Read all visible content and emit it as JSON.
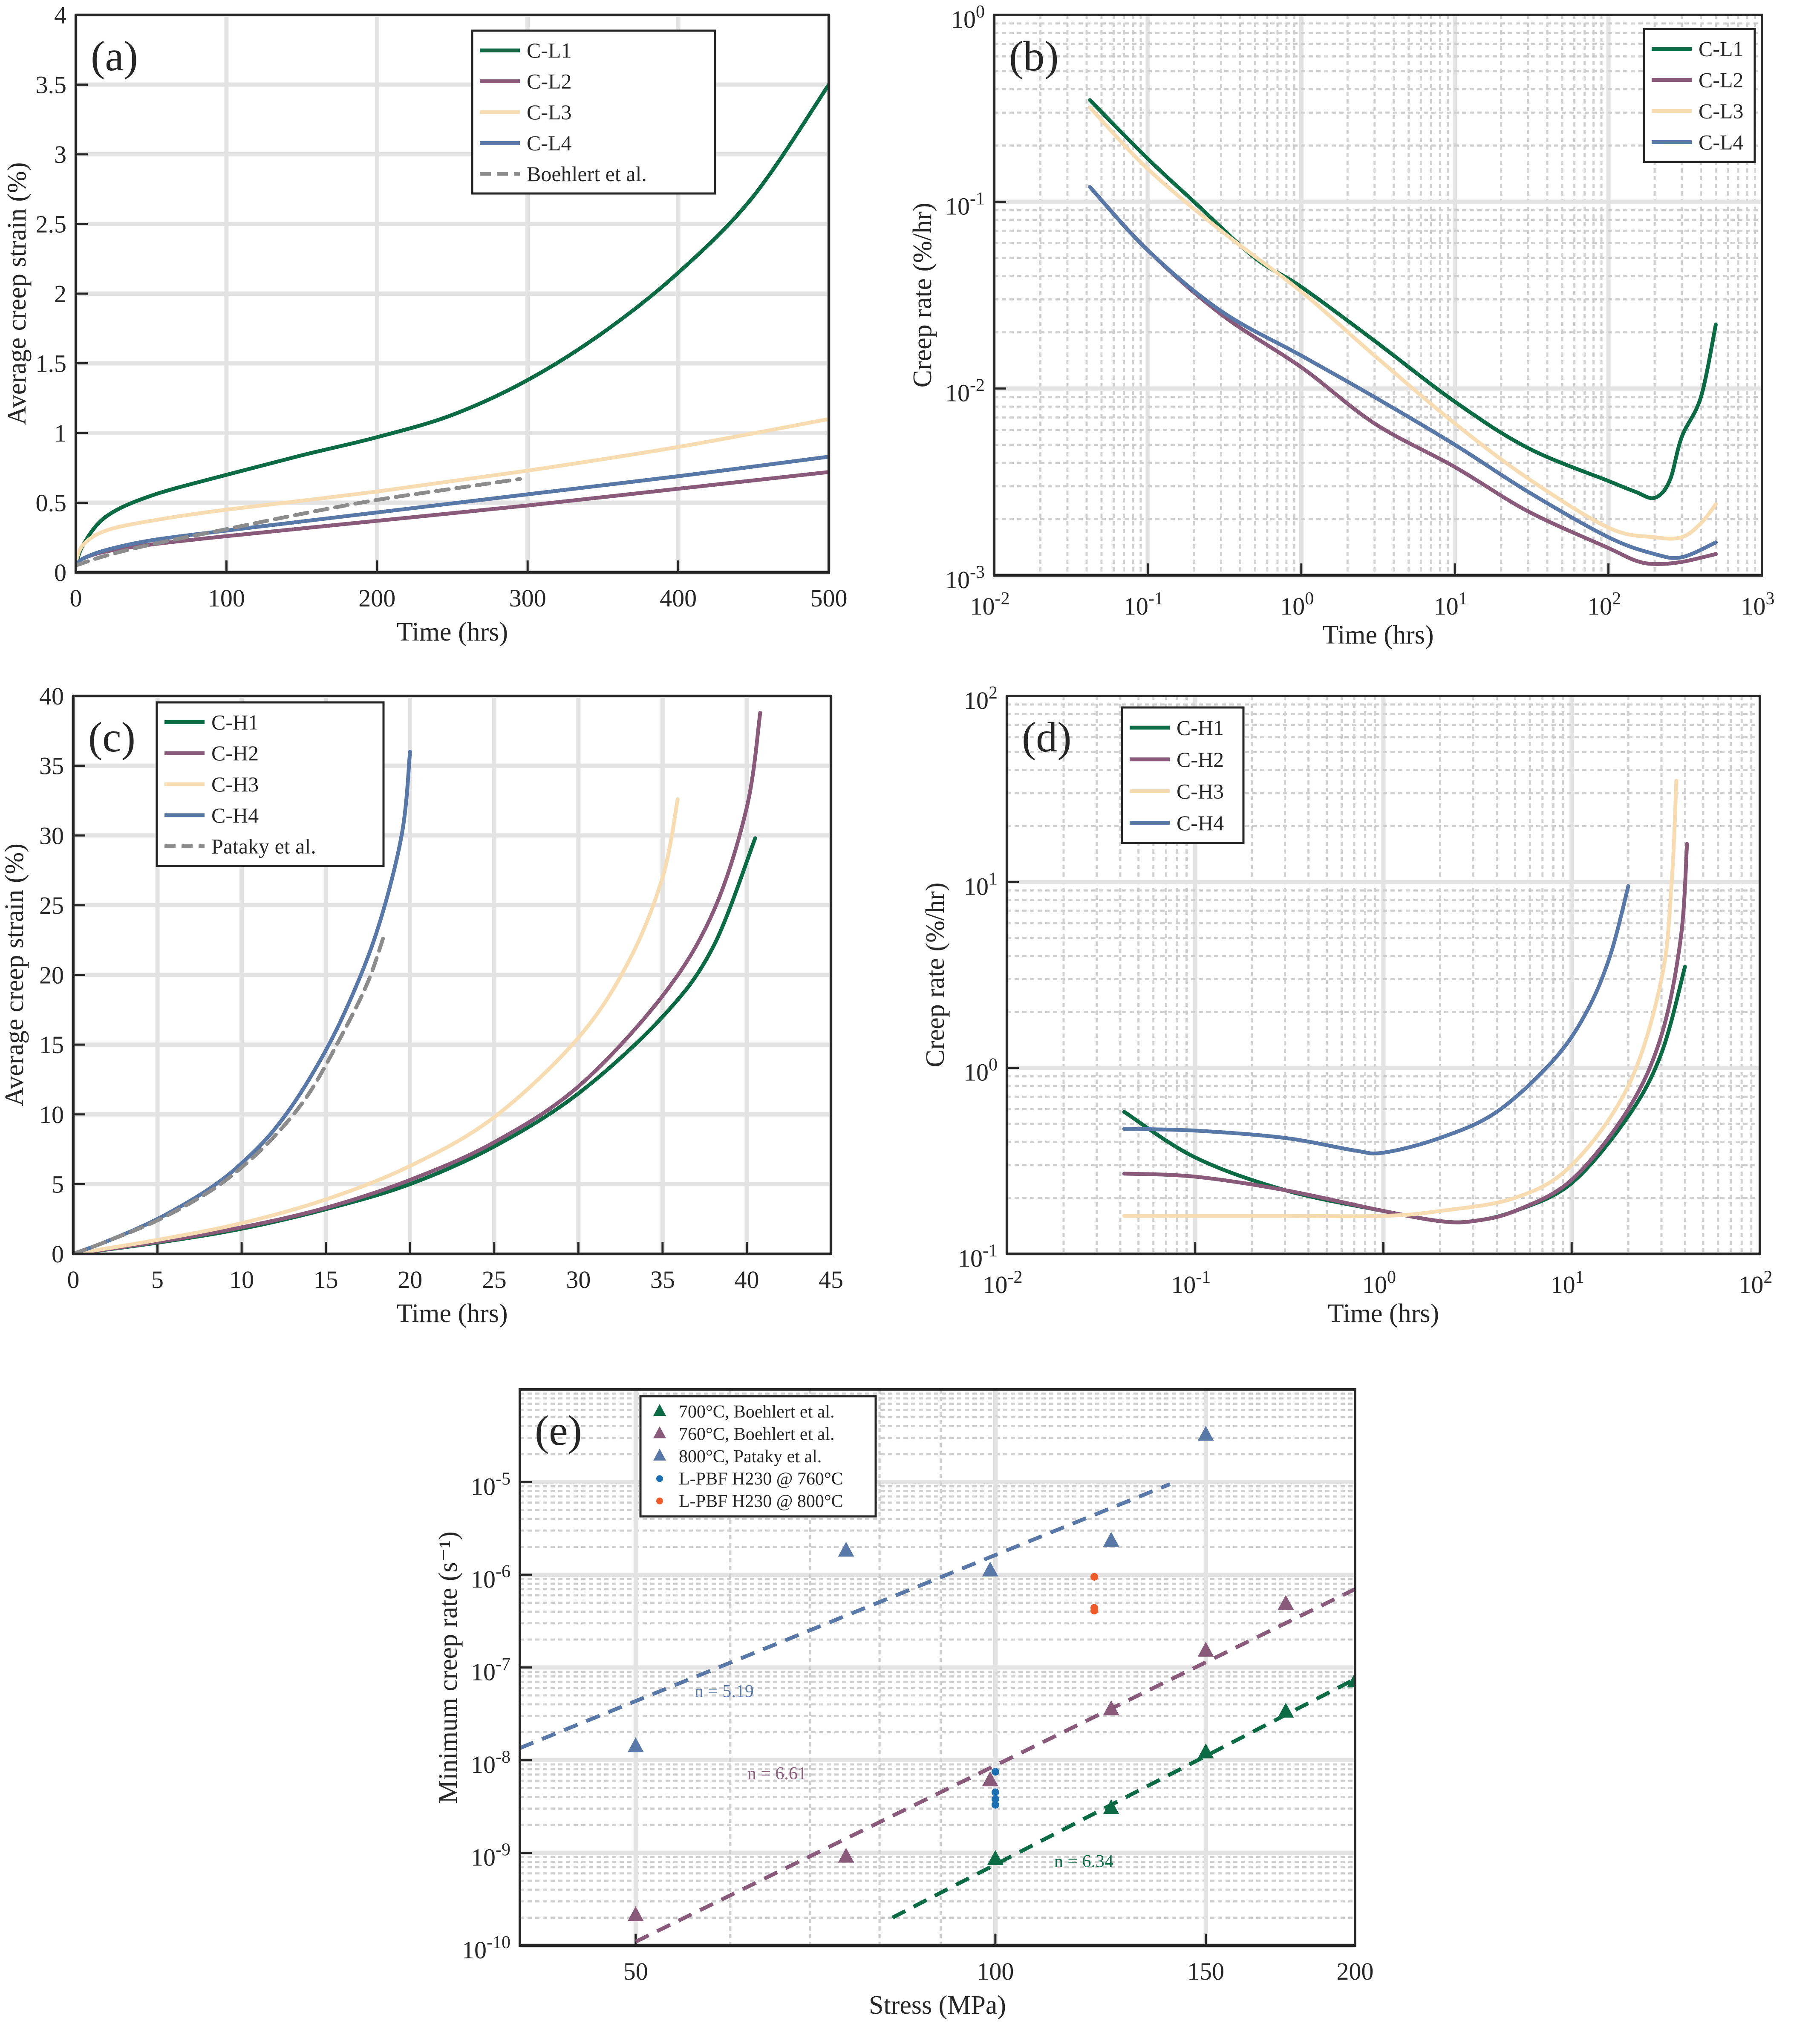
{
  "colors": {
    "green": "#0b6b45",
    "purple": "#8a5a7b",
    "cream": "#f8dcb1",
    "blue": "#5878a8",
    "gray": "#8c8c8c",
    "cyan": "#1a6fb2",
    "orange": "#f05a28"
  },
  "chart_data": [
    {
      "id": "a",
      "type": "line",
      "panel_label": "(a)",
      "xlabel": "Time (hrs)",
      "ylabel": "Average creep strain (%)",
      "xlim": [
        0,
        500
      ],
      "ylim": [
        0,
        4
      ],
      "xticks": [
        0,
        100,
        200,
        300,
        400,
        500
      ],
      "xticklabels": [
        "0",
        "100",
        "200",
        "300",
        "400",
        "500"
      ],
      "yticks": [
        0,
        0.5,
        1,
        1.5,
        2,
        2.5,
        3,
        3.5,
        4
      ],
      "yticklabels": [
        "0",
        "0.5",
        "1",
        "1.5",
        "2",
        "2.5",
        "3",
        "3.5",
        "4"
      ],
      "legend": "top-right",
      "series": [
        {
          "name": "C-L1",
          "color": "green",
          "dash": false,
          "x": [
            0,
            5,
            20,
            50,
            100,
            150,
            200,
            250,
            300,
            350,
            400,
            450,
            500
          ],
          "y": [
            0.05,
            0.2,
            0.4,
            0.55,
            0.7,
            0.84,
            0.97,
            1.13,
            1.38,
            1.72,
            2.15,
            2.7,
            3.5
          ]
        },
        {
          "name": "C-L2",
          "color": "purple",
          "dash": false,
          "x": [
            0,
            5,
            20,
            50,
            100,
            200,
            300,
            400,
            500
          ],
          "y": [
            0.05,
            0.1,
            0.15,
            0.2,
            0.26,
            0.37,
            0.48,
            0.6,
            0.72
          ]
        },
        {
          "name": "C-L3",
          "color": "cream",
          "dash": false,
          "x": [
            0,
            5,
            20,
            50,
            100,
            200,
            300,
            400,
            500
          ],
          "y": [
            0.08,
            0.2,
            0.3,
            0.37,
            0.45,
            0.58,
            0.73,
            0.9,
            1.1
          ]
        },
        {
          "name": "C-L4",
          "color": "blue",
          "dash": false,
          "x": [
            0,
            5,
            20,
            50,
            100,
            200,
            300,
            400,
            500
          ],
          "y": [
            0.05,
            0.1,
            0.16,
            0.23,
            0.3,
            0.43,
            0.56,
            0.69,
            0.83
          ]
        },
        {
          "name": "Boehlert et al.",
          "color": "gray",
          "dash": true,
          "x": [
            0,
            20,
            50,
            100,
            150,
            200,
            250,
            295
          ],
          "y": [
            0.05,
            0.12,
            0.2,
            0.31,
            0.42,
            0.52,
            0.6,
            0.67
          ]
        }
      ]
    },
    {
      "id": "b",
      "type": "line",
      "panel_label": "(b)",
      "xlabel": "Time (hrs)",
      "ylabel": "Creep rate (%/hr)",
      "xscale": "log",
      "yscale": "log",
      "xlim": [
        0.01,
        1000
      ],
      "ylim": [
        0.001,
        1
      ],
      "xtick_exponents": [
        -2,
        -1,
        0,
        1,
        2,
        3
      ],
      "ytick_exponents": [
        -3,
        -2,
        -1,
        0
      ],
      "tick_base": "10",
      "legend": "top-right",
      "series": [
        {
          "name": "C-L1",
          "color": "green",
          "dash": false,
          "x": [
            0.042,
            0.1,
            0.2,
            0.5,
            1,
            3,
            10,
            30,
            100,
            150,
            200,
            250,
            300,
            400,
            500
          ],
          "y": [
            0.35,
            0.17,
            0.1,
            0.05,
            0.035,
            0.018,
            0.0085,
            0.0048,
            0.0032,
            0.0028,
            0.0026,
            0.0032,
            0.0055,
            0.009,
            0.022
          ]
        },
        {
          "name": "C-L2",
          "color": "purple",
          "dash": false,
          "x": [
            0.042,
            0.1,
            0.3,
            1,
            3,
            10,
            30,
            100,
            150,
            200,
            300,
            500
          ],
          "y": [
            0.12,
            0.055,
            0.025,
            0.013,
            0.0065,
            0.0038,
            0.0022,
            0.0014,
            0.0012,
            0.00115,
            0.00118,
            0.0013
          ]
        },
        {
          "name": "C-L3",
          "color": "cream",
          "dash": false,
          "x": [
            0.042,
            0.1,
            0.3,
            1,
            3,
            10,
            30,
            100,
            200,
            300,
            400,
            500
          ],
          "y": [
            0.32,
            0.15,
            0.07,
            0.033,
            0.015,
            0.0065,
            0.0033,
            0.0018,
            0.0016,
            0.0016,
            0.0019,
            0.0024
          ]
        },
        {
          "name": "C-L4",
          "color": "blue",
          "dash": false,
          "x": [
            0.042,
            0.1,
            0.3,
            1,
            3,
            10,
            30,
            100,
            200,
            300,
            500
          ],
          "y": [
            0.12,
            0.055,
            0.026,
            0.015,
            0.009,
            0.005,
            0.0028,
            0.0016,
            0.0013,
            0.00125,
            0.0015
          ]
        }
      ]
    },
    {
      "id": "c",
      "type": "line",
      "panel_label": "(c)",
      "xlabel": "Time (hrs)",
      "ylabel": "Average creep strain (%)",
      "xlim": [
        0,
        45
      ],
      "ylim": [
        0,
        40
      ],
      "xticks": [
        0,
        5,
        10,
        15,
        20,
        25,
        30,
        35,
        40,
        45
      ],
      "xticklabels": [
        "0",
        "5",
        "10",
        "15",
        "20",
        "25",
        "30",
        "35",
        "40",
        "45"
      ],
      "yticks": [
        0,
        5,
        10,
        15,
        20,
        25,
        30,
        35,
        40
      ],
      "yticklabels": [
        "0",
        "5",
        "10",
        "15",
        "20",
        "25",
        "30",
        "35",
        "40"
      ],
      "legend": "top-left",
      "series": [
        {
          "name": "C-H1",
          "color": "green",
          "dash": false,
          "x": [
            0,
            5,
            10,
            15,
            20,
            25,
            30,
            35,
            38,
            40.5
          ],
          "y": [
            0,
            0.8,
            1.8,
            3.2,
            5.0,
            7.7,
            11.5,
            17.0,
            22.0,
            29.8
          ]
        },
        {
          "name": "C-H2",
          "color": "purple",
          "dash": false,
          "x": [
            0,
            5,
            10,
            15,
            20,
            25,
            30,
            35,
            38,
            40,
            40.8
          ],
          "y": [
            0,
            0.85,
            1.9,
            3.3,
            5.3,
            8.0,
            12.0,
            18.5,
            24.5,
            32.0,
            38.8
          ]
        },
        {
          "name": "C-H3",
          "color": "cream",
          "dash": false,
          "x": [
            0,
            5,
            10,
            15,
            20,
            25,
            30,
            33,
            35,
            35.9
          ],
          "y": [
            0,
            1.0,
            2.2,
            3.9,
            6.3,
            9.8,
            15.5,
            21.0,
            27.0,
            32.6
          ]
        },
        {
          "name": "C-H4",
          "color": "blue",
          "dash": false,
          "x": [
            0,
            2,
            5,
            8,
            10,
            12,
            14,
            16,
            18,
            19.5,
            20
          ],
          "y": [
            0,
            0.9,
            2.5,
            4.6,
            6.5,
            9.0,
            12.5,
            17.0,
            23.0,
            30.0,
            36.0
          ]
        },
        {
          "name": "Pataky et al.",
          "color": "gray",
          "dash": true,
          "x": [
            0,
            2,
            5,
            8,
            10,
            12,
            14,
            16,
            17.5,
            18.5
          ],
          "y": [
            0,
            0.9,
            2.4,
            4.4,
            6.2,
            8.5,
            11.5,
            15.8,
            19.5,
            23.0
          ]
        }
      ]
    },
    {
      "id": "d",
      "type": "line",
      "panel_label": "(d)",
      "xlabel": "Time (hrs)",
      "ylabel": "Creep rate (%/hr)",
      "xscale": "log",
      "yscale": "log",
      "xlim": [
        0.01,
        100
      ],
      "ylim": [
        0.1,
        100
      ],
      "xtick_exponents": [
        -2,
        -1,
        0,
        1,
        2
      ],
      "ytick_exponents": [
        -1,
        0,
        1,
        2
      ],
      "tick_base": "10",
      "legend": "top-left",
      "series": [
        {
          "name": "C-H1",
          "color": "green",
          "dash": false,
          "x": [
            0.042,
            0.1,
            0.3,
            1,
            2,
            3,
            5,
            10,
            20,
            30,
            40
          ],
          "y": [
            0.58,
            0.33,
            0.22,
            0.17,
            0.15,
            0.15,
            0.17,
            0.24,
            0.55,
            1.2,
            3.5
          ]
        },
        {
          "name": "C-H2",
          "color": "purple",
          "dash": false,
          "x": [
            0.042,
            0.1,
            0.3,
            1,
            2,
            3,
            5,
            10,
            20,
            30,
            38,
            41
          ],
          "y": [
            0.27,
            0.26,
            0.22,
            0.17,
            0.15,
            0.15,
            0.17,
            0.25,
            0.6,
            1.5,
            5,
            16
          ]
        },
        {
          "name": "C-H3",
          "color": "cream",
          "dash": false,
          "x": [
            0.042,
            0.1,
            0.3,
            1,
            2,
            5,
            10,
            20,
            30,
            34,
            36
          ],
          "y": [
            0.16,
            0.16,
            0.16,
            0.16,
            0.17,
            0.2,
            0.3,
            0.8,
            3,
            10,
            35
          ]
        },
        {
          "name": "C-H4",
          "color": "blue",
          "dash": false,
          "x": [
            0.042,
            0.1,
            0.3,
            0.7,
            1,
            2,
            4,
            8,
            12,
            16,
            20
          ],
          "y": [
            0.47,
            0.46,
            0.42,
            0.36,
            0.35,
            0.42,
            0.58,
            1.1,
            2.0,
            4.0,
            9.5
          ]
        }
      ]
    },
    {
      "id": "e",
      "type": "scatter",
      "panel_label": "(e)",
      "xlabel": "Stress (MPa)",
      "ylabel": "Minimum creep rate (s⁻¹)",
      "xscale": "log",
      "yscale": "log",
      "xlim": [
        40,
        200
      ],
      "ylim": [
        1e-10,
        0.0001
      ],
      "xticks": [
        50,
        100,
        150,
        200
      ],
      "xticklabels": [
        "50",
        "100",
        "150",
        "200"
      ],
      "ytick_exponents": [
        -10,
        -9,
        -8,
        -7,
        -6,
        -5
      ],
      "tick_base": "10",
      "legend": "top-left",
      "series": [
        {
          "name": "700°C, Boehlert et al.",
          "color": "green",
          "marker": "triangle",
          "x": [
            100,
            125,
            150,
            175,
            200
          ],
          "y": [
            8.5e-10,
            3e-09,
            1.2e-08,
            3.3e-08,
            7e-08
          ]
        },
        {
          "name": "760°C, Boehlert et al.",
          "color": "purple",
          "marker": "triangle",
          "x": [
            50,
            75,
            99,
            125,
            150,
            175
          ],
          "y": [
            2.1e-10,
            9e-10,
            6e-09,
            3.5e-08,
            1.5e-07,
            4.8e-07
          ]
        },
        {
          "name": "800°C, Pataky et al.",
          "color": "blue",
          "marker": "triangle",
          "x": [
            50,
            75,
            99,
            125,
            150
          ],
          "y": [
            1.4e-08,
            1.8e-06,
            1.1e-06,
            2.3e-06,
            3.2e-05
          ]
        },
        {
          "name": "L-PBF H230 @ 760°C",
          "color": "cyan",
          "marker": "dot",
          "x": [
            100,
            100,
            100,
            100
          ],
          "y": [
            7.5e-09,
            4.5e-09,
            3.8e-09,
            3.3e-09
          ]
        },
        {
          "name": "L-PBF H230 @ 800°C",
          "color": "orange",
          "marker": "dot",
          "x": [
            121,
            121,
            121
          ],
          "y": [
            9.5e-07,
            4.4e-07,
            4.1e-07
          ]
        }
      ],
      "fits": [
        {
          "label": "n = 6.34",
          "color": "green",
          "x": [
            82,
            200
          ],
          "y": [
            2e-10,
            7.5e-08
          ],
          "label_x": 112,
          "label_y": 7e-10
        },
        {
          "label": "n = 6.61",
          "color": "purple",
          "x": [
            50,
            200
          ],
          "y": [
            1.1e-10,
            7e-07
          ],
          "label_x": 62,
          "label_y": 6.2e-09
        },
        {
          "label": "n = 5.19",
          "color": "blue",
          "x": [
            40,
            140
          ],
          "y": [
            1.35e-08,
            9.5e-06
          ],
          "label_x": 56,
          "label_y": 4.8e-08
        }
      ]
    }
  ]
}
